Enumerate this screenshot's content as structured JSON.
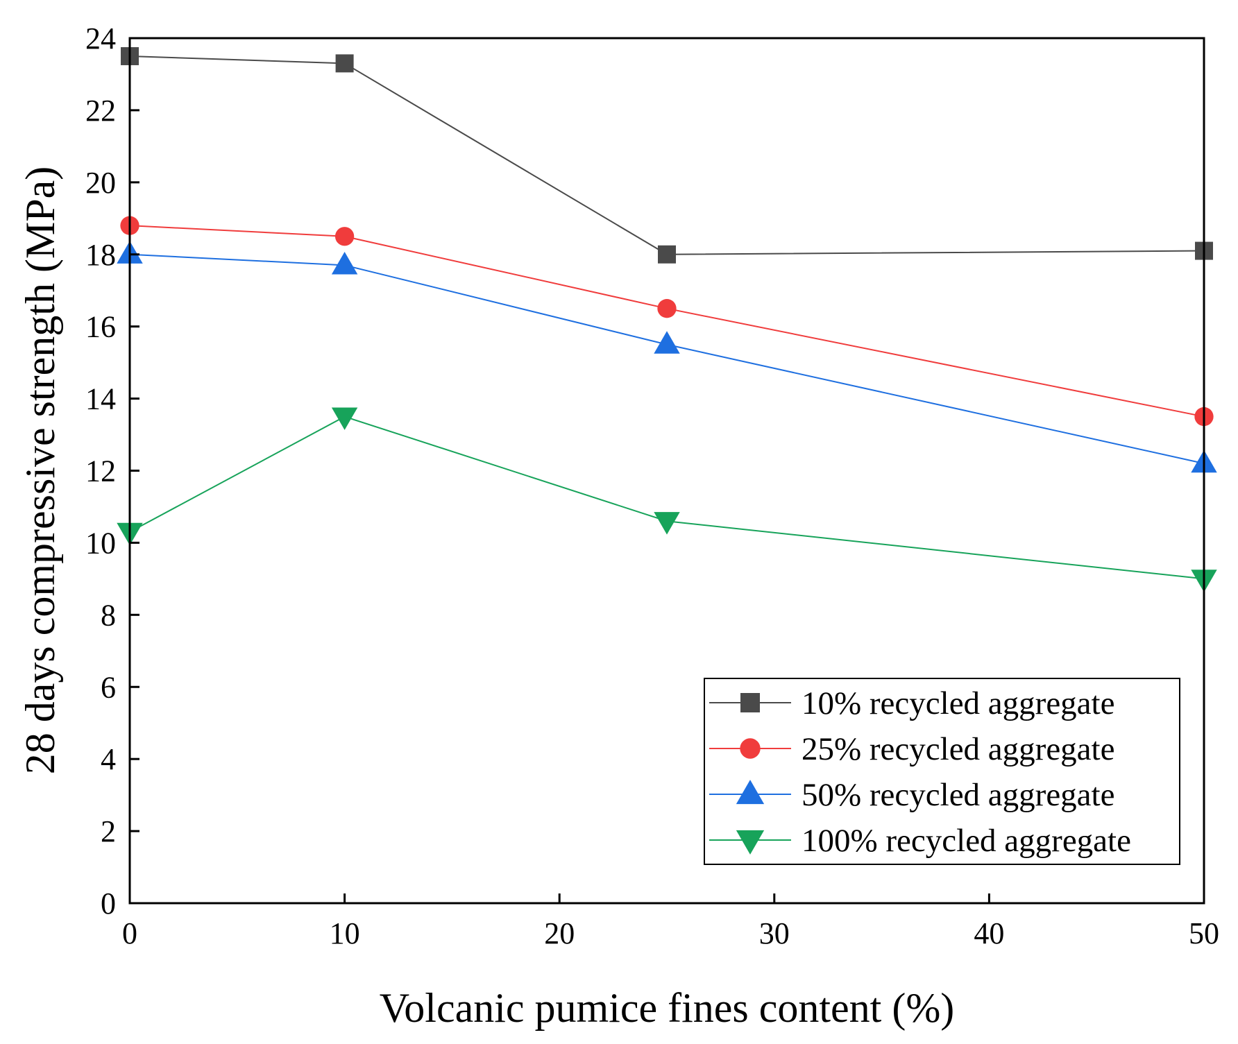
{
  "chart_data": {
    "type": "line",
    "title": "",
    "xlabel": "Volcanic pumice fines content (%)",
    "ylabel": "28 days compressive strength (MPa)",
    "xlim": [
      0,
      50
    ],
    "ylim": [
      0,
      24
    ],
    "xticks": [
      "0",
      "10",
      "20",
      "30",
      "40",
      "50"
    ],
    "yticks": [
      "0",
      "2",
      "4",
      "6",
      "8",
      "10",
      "12",
      "14",
      "16",
      "18",
      "20",
      "22",
      "24"
    ],
    "x": [
      0,
      10,
      25,
      50
    ],
    "grid": false,
    "legend_position": "bottom-right",
    "series": [
      {
        "name": "10% recycled aggregate",
        "marker": "square",
        "color": "#4a4a4a",
        "values": [
          23.5,
          23.3,
          18.0,
          18.1
        ]
      },
      {
        "name": "25% recycled aggregate",
        "marker": "circle",
        "color": "#f03c3c",
        "values": [
          18.8,
          18.5,
          16.5,
          13.5
        ]
      },
      {
        "name": "50% recycled aggregate",
        "marker": "triangle-up",
        "color": "#1e6fe0",
        "values": [
          18.0,
          17.7,
          15.5,
          12.2
        ]
      },
      {
        "name": "100% recycled aggregate",
        "marker": "triangle-down",
        "color": "#17a35a",
        "values": [
          10.3,
          13.5,
          10.6,
          9.0
        ]
      }
    ]
  }
}
